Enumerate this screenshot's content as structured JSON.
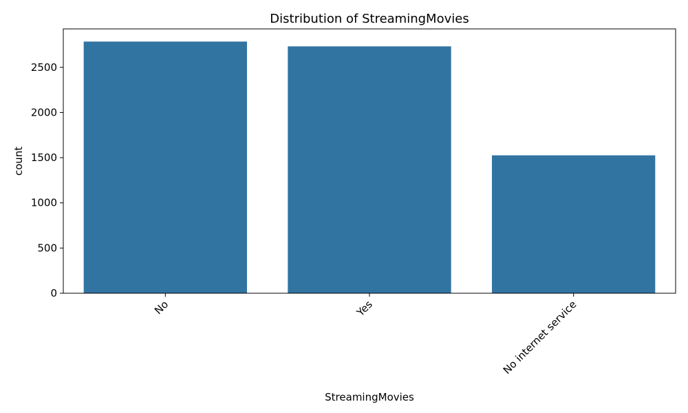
{
  "chart_data": {
    "type": "bar",
    "title": "Distribution of StreamingMovies",
    "xlabel": "StreamingMovies",
    "ylabel": "count",
    "categories": [
      "No",
      "Yes",
      "No internet service"
    ],
    "values": [
      2785,
      2732,
      1526
    ],
    "ylim": [
      0,
      2925
    ],
    "yticks": [
      0,
      500,
      1000,
      1500,
      2000,
      2500
    ],
    "bar_color": "#3274a1",
    "grid": false,
    "x_tick_rotation_deg": 45
  }
}
